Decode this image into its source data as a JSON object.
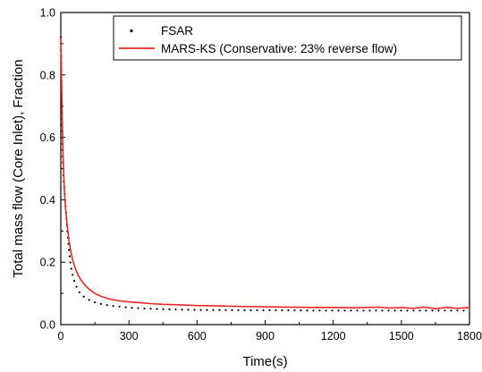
{
  "chart_data": {
    "type": "line",
    "title": "",
    "xlabel": "Time(s)",
    "ylabel": "Total mass flow (Core Inlet), Fraction",
    "xlim": [
      0,
      1800
    ],
    "ylim": [
      0.0,
      1.0
    ],
    "xticks": [
      0,
      300,
      600,
      900,
      1200,
      1500,
      1800
    ],
    "xtick_labels": [
      "0",
      "300",
      "600",
      "900",
      "1200",
      "1500",
      "1800"
    ],
    "yticks": [
      0.0,
      0.2,
      0.4,
      0.6,
      0.8,
      1.0
    ],
    "ytick_labels": [
      "0.0",
      "0.2",
      "0.4",
      "0.6",
      "0.8",
      "1.0"
    ],
    "grid": false,
    "legend_position": "top-right",
    "series": [
      {
        "name": "FSAR",
        "style": "dotted",
        "color": "#000000",
        "points": [
          [
            0,
            0.92
          ],
          [
            4,
            0.72
          ],
          [
            8,
            0.55
          ],
          [
            12,
            0.47
          ],
          [
            16,
            0.43
          ],
          [
            20,
            0.39
          ],
          [
            24,
            0.35
          ],
          [
            28,
            0.31
          ],
          [
            32,
            0.27
          ],
          [
            36,
            0.24
          ],
          [
            40,
            0.21
          ],
          [
            45,
            0.185
          ],
          [
            50,
            0.165
          ],
          [
            57,
            0.145
          ],
          [
            65,
            0.128
          ],
          [
            75,
            0.112
          ],
          [
            85,
            0.1
          ],
          [
            100,
            0.09
          ],
          [
            115,
            0.083
          ],
          [
            135,
            0.075
          ],
          [
            160,
            0.069
          ],
          [
            190,
            0.064
          ],
          [
            225,
            0.06
          ],
          [
            265,
            0.057
          ],
          [
            310,
            0.054
          ],
          [
            360,
            0.052
          ],
          [
            420,
            0.05
          ],
          [
            480,
            0.049
          ],
          [
            540,
            0.048
          ],
          [
            600,
            0.047
          ],
          [
            700,
            0.047
          ],
          [
            800,
            0.046
          ],
          [
            900,
            0.046
          ],
          [
            1000,
            0.046
          ],
          [
            1100,
            0.045
          ],
          [
            1200,
            0.045
          ],
          [
            1300,
            0.045
          ],
          [
            1400,
            0.045
          ],
          [
            1500,
            0.045
          ],
          [
            1600,
            0.045
          ],
          [
            1700,
            0.045
          ],
          [
            1800,
            0.045
          ]
        ]
      },
      {
        "name": "MARS-KS (Conservative: 23% reverse flow)",
        "style": "solid",
        "color": "#e8272a",
        "points": [
          [
            0,
            0.92
          ],
          [
            4,
            0.75
          ],
          [
            8,
            0.6
          ],
          [
            12,
            0.5
          ],
          [
            16,
            0.43
          ],
          [
            20,
            0.38
          ],
          [
            28,
            0.32
          ],
          [
            36,
            0.27
          ],
          [
            45,
            0.23
          ],
          [
            55,
            0.2
          ],
          [
            65,
            0.178
          ],
          [
            75,
            0.16
          ],
          [
            90,
            0.142
          ],
          [
            105,
            0.128
          ],
          [
            125,
            0.113
          ],
          [
            150,
            0.1
          ],
          [
            180,
            0.09
          ],
          [
            210,
            0.083
          ],
          [
            250,
            0.077
          ],
          [
            300,
            0.073
          ],
          [
            350,
            0.07
          ],
          [
            400,
            0.067
          ],
          [
            450,
            0.065
          ],
          [
            500,
            0.064
          ],
          [
            600,
            0.061
          ],
          [
            700,
            0.06
          ],
          [
            800,
            0.058
          ],
          [
            900,
            0.057
          ],
          [
            1000,
            0.056
          ],
          [
            1100,
            0.055
          ],
          [
            1200,
            0.055
          ],
          [
            1300,
            0.054
          ],
          [
            1400,
            0.056
          ],
          [
            1450,
            0.053
          ],
          [
            1500,
            0.055
          ],
          [
            1550,
            0.052
          ],
          [
            1600,
            0.056
          ],
          [
            1650,
            0.051
          ],
          [
            1700,
            0.055
          ],
          [
            1750,
            0.052
          ],
          [
            1800,
            0.055
          ]
        ]
      }
    ]
  }
}
